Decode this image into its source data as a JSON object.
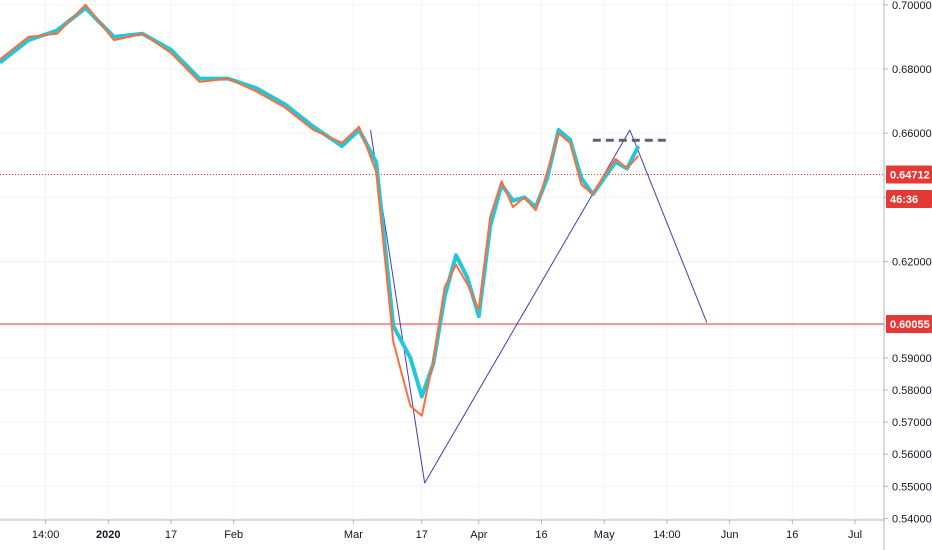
{
  "chart_data": {
    "type": "line",
    "title": "",
    "xlabel": "",
    "ylabel": "",
    "ylim": [
      0.5395,
      0.7015
    ],
    "y_ticks": [
      0.54,
      0.55,
      0.56,
      0.57,
      0.58,
      0.59,
      0.6,
      0.62,
      0.64,
      0.66,
      0.68,
      0.7
    ],
    "y_tick_labels": [
      "0.54000",
      "0.55000",
      "0.56000",
      "0.57000",
      "0.58000",
      "0.59000",
      "0.60055",
      "0.62000",
      "0.64712",
      "0.66000",
      "0.68000",
      "0.70000"
    ],
    "x_tick_labels": [
      "14:00",
      "2020",
      "17",
      "Feb",
      "Mar",
      "17",
      "Apr",
      "16",
      "May",
      "14:00",
      "Jun",
      "16",
      "Jul"
    ],
    "x_tick_bold": [
      false,
      true,
      false,
      false,
      false,
      false,
      false,
      false,
      false,
      false,
      false,
      false,
      false
    ],
    "x_range": [
      0,
      150
    ],
    "x_ticks": [
      8,
      19,
      30,
      41,
      62,
      74,
      84,
      95,
      106,
      117,
      128,
      139,
      150
    ],
    "series": [
      {
        "color": "#26c6da",
        "x": [
          0,
          5,
          10,
          15,
          20,
          25,
          30,
          35,
          40,
          45,
          50,
          55,
          60,
          63,
          66,
          69,
          72,
          74,
          76,
          78,
          80,
          82,
          84,
          86,
          88,
          90,
          92,
          94,
          96,
          98,
          100,
          102,
          104,
          106,
          108,
          110,
          112
        ],
        "y": [
          0.682,
          0.689,
          0.692,
          0.699,
          0.69,
          0.691,
          0.686,
          0.677,
          0.677,
          0.674,
          0.669,
          0.662,
          0.656,
          0.661,
          0.651,
          0.6,
          0.59,
          0.578,
          0.588,
          0.609,
          0.622,
          0.615,
          0.603,
          0.631,
          0.644,
          0.639,
          0.64,
          0.637,
          0.646,
          0.661,
          0.658,
          0.646,
          0.641,
          0.646,
          0.651,
          0.649,
          0.656
        ]
      },
      {
        "color": "#ff6d3a",
        "x": [
          0,
          5,
          10,
          15,
          20,
          25,
          30,
          35,
          40,
          45,
          50,
          55,
          60,
          63,
          66,
          69,
          72,
          74,
          76,
          78,
          80,
          82,
          84,
          86,
          88,
          90,
          92,
          94,
          96,
          98,
          100,
          102,
          104,
          106,
          108,
          110,
          112
        ],
        "y": [
          0.683,
          0.69,
          0.691,
          0.7,
          0.689,
          0.691,
          0.685,
          0.676,
          0.677,
          0.673,
          0.668,
          0.661,
          0.657,
          0.662,
          0.648,
          0.595,
          0.575,
          0.572,
          0.589,
          0.612,
          0.619,
          0.613,
          0.605,
          0.634,
          0.645,
          0.637,
          0.64,
          0.636,
          0.648,
          0.66,
          0.657,
          0.644,
          0.641,
          0.647,
          0.652,
          0.649,
          0.653
        ]
      }
    ],
    "horizontal_lines": [
      {
        "y": 0.64712,
        "color": "#e53935",
        "style": "dotted"
      },
      {
        "y": 0.60055,
        "color": "#e53935",
        "style": "solid"
      }
    ],
    "trend_lines": [
      {
        "color": "#3f3fb5",
        "points": [
          [
            65,
            0.661
          ],
          [
            74.5,
            0.551
          ]
        ]
      },
      {
        "color": "#3f3fb5",
        "points": [
          [
            74.5,
            0.551
          ],
          [
            110.5,
            0.661
          ]
        ]
      },
      {
        "color": "#3f3fb5",
        "points": [
          [
            110.5,
            0.661
          ],
          [
            124,
            0.601
          ]
        ]
      }
    ],
    "dashed_level": {
      "y": 0.6578,
      "x_from": 104,
      "x_to": 117,
      "color": "#5a6372"
    },
    "price_labels": [
      {
        "text": "0.64712",
        "y": 0.64712,
        "color": "#e53935"
      },
      {
        "text": "46:36",
        "y": 0.6395,
        "color": "#e53935"
      },
      {
        "text": "0.60055",
        "y": 0.60055,
        "color": "#e53935"
      }
    ]
  }
}
